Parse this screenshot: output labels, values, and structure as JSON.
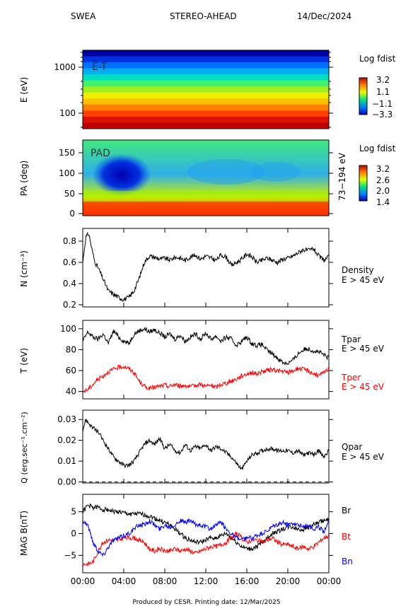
{
  "header": {
    "left": "SWEA",
    "center": "STEREO-AHEAD",
    "right": "14/Dec/2024"
  },
  "footer": "Produced by CESR.   Printing date: 12/Mar/2025",
  "time_axis": {
    "ticks": [
      "00:00",
      "04:00",
      "08:00",
      "12:00",
      "16:00",
      "20:00",
      "00:00"
    ]
  },
  "chart_data": [
    {
      "type": "heatmap",
      "ylabel": "E (eV)",
      "scale": "log",
      "yticks": [
        "1000",
        "100"
      ],
      "inset": "E-T",
      "colorbar": {
        "title": "Log fdist",
        "ticks": [
          "3.2",
          "1.1",
          "−1.1",
          "−3.3"
        ],
        "range": [
          -3.3,
          3.2
        ]
      },
      "note": "energy bands increase in fdist toward lower energies"
    },
    {
      "type": "heatmap",
      "ylabel": "PA (deg)",
      "yticks": [
        "150",
        "100",
        "50",
        "0"
      ],
      "ylim": [
        0,
        180
      ],
      "inset": "PAD",
      "right_label": "73−194 eV",
      "colorbar": {
        "title": "Log fdist",
        "ticks": [
          "3.2",
          "2.6",
          "2.0",
          "1.4"
        ],
        "range": [
          1.4,
          3.2
        ]
      }
    },
    {
      "type": "line",
      "ylabel": "N (cm⁻³)",
      "yticks": [
        "0.8",
        "0.6",
        "0.4",
        "0.2"
      ],
      "ylim": [
        0.18,
        0.92
      ],
      "legend": [
        "Density",
        "E > 45 eV"
      ],
      "series": [
        {
          "color": "#000000",
          "x": [
            0,
            0.3,
            0.6,
            0.9,
            1.2,
            1.5,
            2,
            2.5,
            3,
            3.5,
            4,
            4.5,
            5,
            5.5,
            6,
            6.5,
            7,
            7.5,
            8,
            8.5,
            9,
            9.5,
            10,
            10.5,
            11,
            11.5,
            12,
            12.5,
            13,
            13.5,
            14,
            14.5,
            15,
            15.5,
            16,
            16.5,
            17,
            17.5,
            18,
            18.5,
            19,
            19.5,
            20,
            20.5,
            21,
            21.5,
            22,
            22.5,
            23,
            23.5,
            24
          ],
          "y": [
            0.6,
            0.84,
            0.87,
            0.72,
            0.6,
            0.55,
            0.44,
            0.33,
            0.3,
            0.27,
            0.25,
            0.27,
            0.33,
            0.45,
            0.6,
            0.66,
            0.65,
            0.63,
            0.64,
            0.62,
            0.65,
            0.64,
            0.62,
            0.65,
            0.67,
            0.63,
            0.66,
            0.64,
            0.62,
            0.67,
            0.65,
            0.57,
            0.6,
            0.63,
            0.68,
            0.65,
            0.6,
            0.62,
            0.64,
            0.62,
            0.6,
            0.63,
            0.64,
            0.66,
            0.69,
            0.72,
            0.71,
            0.73,
            0.66,
            0.62,
            0.65
          ]
        }
      ]
    },
    {
      "type": "line",
      "ylabel": "T (eV)",
      "yticks": [
        "100",
        "80",
        "60",
        "40"
      ],
      "ylim": [
        33,
        108
      ],
      "legend": [
        "Tpar",
        "E > 45 eV",
        "Tper",
        "E > 45 eV"
      ],
      "series": [
        {
          "name": "Tpar",
          "color": "#000000",
          "x": [
            0,
            0.5,
            1,
            1.5,
            2,
            2.5,
            3,
            3.5,
            4,
            4.5,
            5,
            5.5,
            6,
            6.5,
            7,
            7.5,
            8,
            8.5,
            9,
            9.5,
            10,
            10.5,
            11,
            11.5,
            12,
            12.5,
            13,
            13.5,
            14,
            14.5,
            15,
            15.5,
            16,
            16.5,
            17,
            17.5,
            18,
            18.5,
            19,
            19.5,
            20,
            20.5,
            21,
            21.5,
            22,
            22.5,
            23,
            23.5,
            24
          ],
          "y": [
            88,
            97,
            92,
            90,
            95,
            86,
            98,
            92,
            88,
            86,
            95,
            98,
            100,
            97,
            99,
            96,
            92,
            95,
            90,
            94,
            88,
            92,
            95,
            90,
            96,
            90,
            93,
            88,
            92,
            90,
            84,
            88,
            92,
            86,
            84,
            85,
            79,
            76,
            72,
            68,
            67,
            70,
            76,
            80,
            81,
            79,
            78,
            75,
            72
          ]
        },
        {
          "name": "Tper",
          "color": "#ff0000",
          "x": [
            0,
            0.5,
            1,
            1.5,
            2,
            2.5,
            3,
            3.5,
            4,
            4.5,
            5,
            5.5,
            6,
            6.5,
            7,
            7.5,
            8,
            8.5,
            9,
            9.5,
            10,
            10.5,
            11,
            11.5,
            12,
            12.5,
            13,
            13.5,
            14,
            14.5,
            15,
            15.5,
            16,
            16.5,
            17,
            17.5,
            18,
            18.5,
            19,
            19.5,
            20,
            20.5,
            21,
            21.5,
            22,
            22.5,
            23,
            23.5,
            24
          ],
          "y": [
            40,
            42,
            47,
            52,
            55,
            59,
            61,
            63,
            64,
            62,
            58,
            50,
            45,
            43,
            44,
            45,
            46,
            45,
            47,
            45,
            46,
            44,
            46,
            47,
            45,
            46,
            44,
            47,
            48,
            50,
            52,
            55,
            57,
            58,
            57,
            59,
            60,
            61,
            60,
            59,
            58,
            60,
            62,
            61,
            60,
            57,
            55,
            58,
            62
          ]
        }
      ]
    },
    {
      "type": "line",
      "ylabel": "Q (erg.sec⁻¹.cm⁻²)",
      "yticks": [
        "0.03",
        "0.02",
        "0.01",
        "0.00"
      ],
      "ylim": [
        -0.0005,
        0.0345
      ],
      "legend": [
        "Qpar",
        "E > 45 eV"
      ],
      "series": [
        {
          "color": "#000000",
          "x": [
            0,
            0.3,
            0.6,
            1,
            1.5,
            2,
            2.5,
            3,
            3.5,
            4,
            4.5,
            5,
            5.5,
            6,
            6.5,
            7,
            7.5,
            8,
            8.5,
            9,
            9.5,
            10,
            10.5,
            11,
            11.5,
            12,
            12.5,
            13,
            13.5,
            14,
            14.5,
            15,
            15.5,
            16,
            16.5,
            17,
            17.5,
            18,
            18.5,
            19,
            19.5,
            20,
            20.5,
            21,
            21.5,
            22,
            22.5,
            23,
            23.5,
            24
          ],
          "y": [
            0.025,
            0.03,
            0.028,
            0.026,
            0.024,
            0.02,
            0.016,
            0.012,
            0.01,
            0.008,
            0.008,
            0.01,
            0.014,
            0.018,
            0.02,
            0.018,
            0.021,
            0.016,
            0.018,
            0.015,
            0.014,
            0.018,
            0.015,
            0.017,
            0.016,
            0.018,
            0.015,
            0.017,
            0.016,
            0.014,
            0.012,
            0.009,
            0.006,
            0.01,
            0.013,
            0.014,
            0.015,
            0.016,
            0.016,
            0.015,
            0.015,
            0.015,
            0.014,
            0.015,
            0.013,
            0.014,
            0.013,
            0.015,
            0.012,
            0.015
          ]
        },
        {
          "color": "#000000",
          "dashed": true,
          "x": [
            0,
            24
          ],
          "y": [
            0,
            0
          ]
        }
      ]
    },
    {
      "type": "line",
      "ylabel": "MAG B(nT)",
      "yticks": [
        "5",
        "0",
        "−5"
      ],
      "ylim": [
        -9,
        9
      ],
      "legend": [
        "Br",
        "Bt",
        "Bn"
      ],
      "series": [
        {
          "name": "Br",
          "color": "#000000",
          "x": [
            0,
            0.5,
            1,
            1.5,
            2,
            2.5,
            3,
            3.5,
            4,
            4.5,
            5,
            5.5,
            6,
            6.5,
            7,
            7.5,
            8,
            8.5,
            9,
            9.5,
            10,
            10.5,
            11,
            11.5,
            12,
            12.5,
            13,
            13.5,
            14,
            14.5,
            15,
            15.5,
            16,
            16.5,
            17,
            17.5,
            18,
            18.5,
            19,
            19.5,
            20,
            20.5,
            21,
            21.5,
            22,
            22.5,
            23,
            23.5,
            24
          ],
          "y": [
            5,
            6.5,
            6,
            6,
            5.5,
            5.5,
            5,
            5,
            4.7,
            4.5,
            4.5,
            4.5,
            4.3,
            4,
            3.5,
            3,
            2.5,
            2,
            1,
            0,
            -1,
            -1.5,
            -2,
            -2,
            -1.5,
            -1,
            -1,
            -0.5,
            0,
            -1,
            -2,
            -3,
            -3.5,
            -3.5,
            -3,
            -2,
            -1,
            0,
            0.5,
            1,
            1.5,
            1.5,
            1,
            1,
            1.5,
            2,
            2.5,
            3,
            3
          ]
        },
        {
          "name": "Bt",
          "color": "#ff0000",
          "x": [
            0,
            0.5,
            1,
            1.5,
            2,
            2.5,
            3,
            3.5,
            4,
            4.5,
            5,
            5.5,
            6,
            6.5,
            7,
            7.5,
            8,
            8.5,
            9,
            9.5,
            10,
            10.5,
            11,
            11.5,
            12,
            12.5,
            13,
            13.5,
            14,
            14.5,
            15,
            15.5,
            16,
            16.5,
            17,
            17.5,
            18,
            18.5,
            19,
            19.5,
            20,
            20.5,
            21,
            21.5,
            22,
            22.5,
            23,
            23.5,
            24
          ],
          "y": [
            -7,
            -7,
            -6.5,
            -4,
            -2,
            -1.5,
            -1.5,
            -1.5,
            -1,
            -1,
            -1,
            -1.5,
            -2,
            -3.5,
            -4,
            -3.5,
            -4,
            -4,
            -3.5,
            -4,
            -3.5,
            -4,
            -4.5,
            -4,
            -3.5,
            -3,
            -3,
            -2.5,
            -2,
            -1,
            0,
            -1,
            -2,
            -1.5,
            -1.5,
            -2,
            -1.5,
            -1,
            -2,
            -2.5,
            -2.5,
            -3,
            -3.5,
            -3,
            -3.5,
            -3,
            -2,
            -1,
            -0.5
          ]
        },
        {
          "name": "Bn",
          "color": "#0000ff",
          "x": [
            0,
            0.5,
            1,
            1.5,
            2,
            2.5,
            3,
            3.5,
            4,
            4.5,
            5,
            5.5,
            6,
            6.5,
            7,
            7.5,
            8,
            8.5,
            9,
            9.5,
            10,
            10.5,
            11,
            11.5,
            12,
            12.5,
            13,
            13.5,
            14,
            14.5,
            15,
            15.5,
            16,
            16.5,
            17,
            17.5,
            18,
            18.5,
            19,
            19.5,
            20,
            20.5,
            21,
            21.5,
            22,
            22.5,
            23,
            23.5,
            24
          ],
          "y": [
            3,
            2,
            -2,
            -4,
            -5,
            -3,
            -1.5,
            -1,
            -0.5,
            0,
            1,
            2,
            2,
            3,
            2,
            1,
            2,
            1.5,
            2,
            3,
            2.5,
            3,
            2,
            2,
            1.5,
            1,
            2,
            2.5,
            1,
            0,
            -1,
            -1.5,
            -1,
            -1,
            -0.5,
            0,
            0.5,
            1.5,
            2,
            2.5,
            2,
            2.5,
            2,
            1.5,
            2,
            1,
            1.5,
            0.5,
            3
          ]
        }
      ]
    }
  ]
}
